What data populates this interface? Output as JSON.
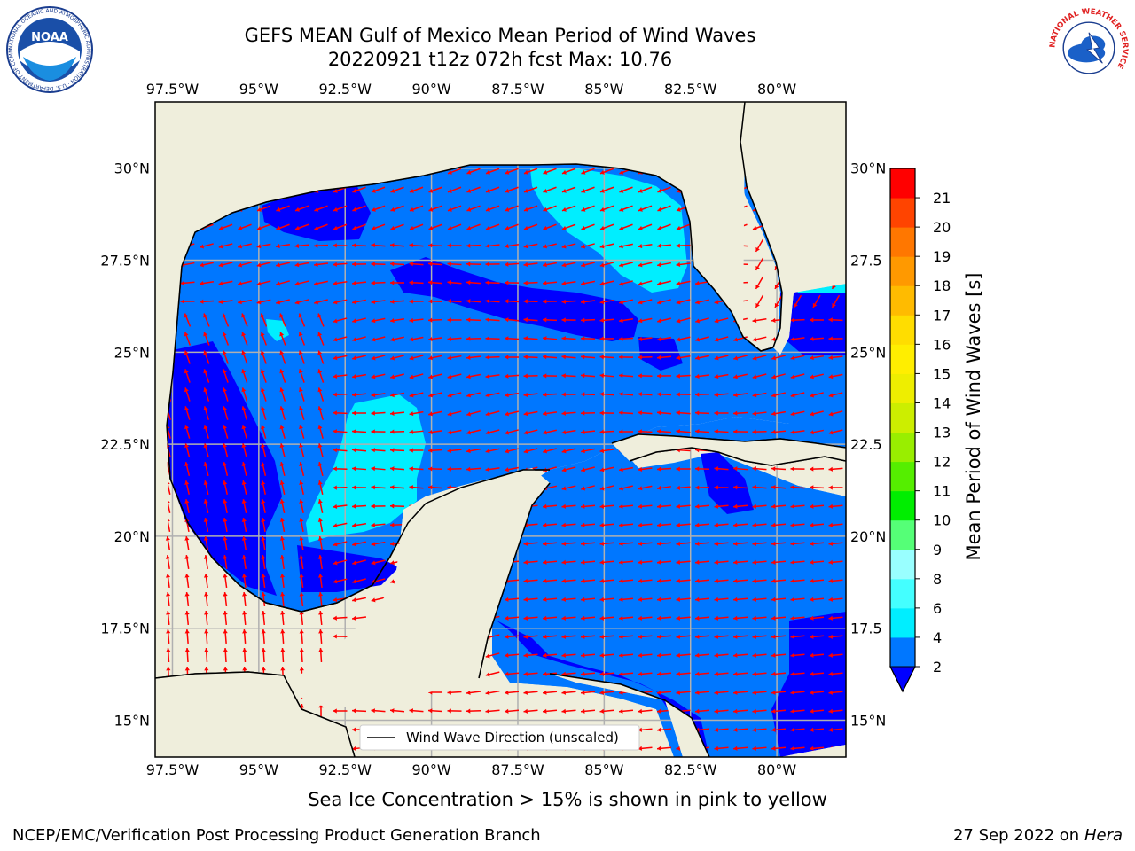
{
  "header": {
    "title_line1": "GEFS MEAN Gulf of Mexico Mean Period of Wind Waves",
    "title_line2": "20220921 t12z 072h fcst   Max: 10.76"
  },
  "logos": {
    "left_text": "NOAA",
    "left_ring_text": "NATIONAL OCEANIC AND ATMOSPHERIC ADMINISTRATION · U.S. DEPARTMENT OF COMMERCE",
    "right_ring_text": "NATIONAL WEATHER SERVICE"
  },
  "map": {
    "lon_range": [
      -98,
      -78
    ],
    "lat_range": [
      14,
      31.8
    ],
    "lon_ticks": [
      "97.5°W",
      "95°W",
      "92.5°W",
      "90°W",
      "87.5°W",
      "85°W",
      "82.5°W",
      "80°W"
    ],
    "lat_ticks": [
      "30°N",
      "27.5°N",
      "25°N",
      "22.5°N",
      "20°N",
      "17.5°N",
      "15°N"
    ],
    "right_lat_ticks": [
      "30°N",
      "27.5",
      "25°N",
      "22.5",
      "20°N",
      "17.5",
      "15°N"
    ],
    "legend_label": "Wind Wave Direction (unscaled)",
    "land_color": "#efeedc",
    "arrow_color": "#ff0000"
  },
  "colorbar": {
    "label": "Mean Period of Wind Waves [s]",
    "levels": [
      "2",
      "4",
      "6",
      "8",
      "9",
      "10",
      "11",
      "12",
      "13",
      "14",
      "15",
      "16",
      "17",
      "18",
      "19",
      "20",
      "21"
    ],
    "colors": [
      "#0077ff",
      "#00eeff",
      "#44ffff",
      "#99ffff",
      "#55ff77",
      "#00ee00",
      "#55ee00",
      "#99ee00",
      "#ccee00",
      "#eeee00",
      "#ffee00",
      "#ffdd00",
      "#ffbb00",
      "#ff9900",
      "#ff7700",
      "#ff4400",
      "#ff0000"
    ],
    "extend_color": "#0000ff"
  },
  "footer": {
    "note": "Sea Ice Concentration > 15% is shown in pink to yellow",
    "credit_left": "NCEP/EMC/Verification Post Processing Product Generation Branch",
    "credit_right_date": "27 Sep 2022 on",
    "credit_right_host": "Hera"
  }
}
